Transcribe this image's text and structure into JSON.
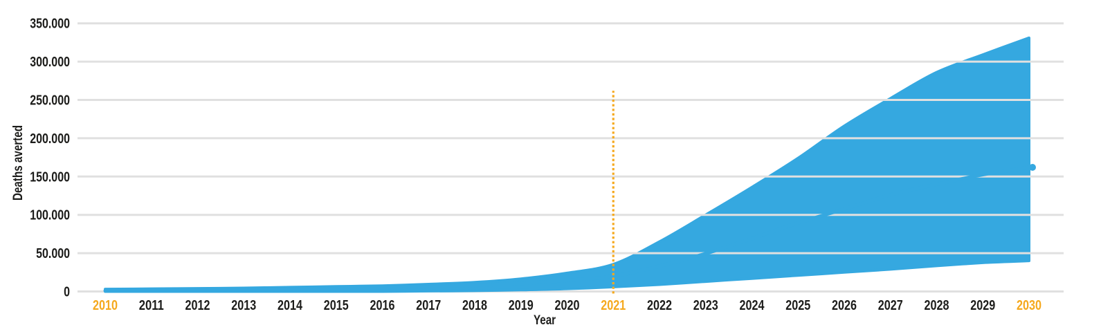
{
  "chart_data": {
    "type": "area",
    "title": "",
    "xlabel": "Year",
    "ylabel": "Deaths averted",
    "x_tick_labels": [
      "2010",
      "2011",
      "2012",
      "2013",
      "2014",
      "2015",
      "2016",
      "2017",
      "2018",
      "2019",
      "2020",
      "2021",
      "2022",
      "2023",
      "2024",
      "2025",
      "2026",
      "2027",
      "2028",
      "2029",
      "2030"
    ],
    "highlighted_x_ticks": [
      "2010",
      "2021",
      "2030"
    ],
    "y_tick_labels": [
      "0",
      "50.000",
      "100.000",
      "150.000",
      "200.000",
      "250.000",
      "300.000",
      "350.000"
    ],
    "y_tick_values": [
      0,
      50000,
      100000,
      150000,
      200000,
      250000,
      300000,
      350000
    ],
    "ylim": [
      0,
      350000
    ],
    "grid": "horizontal",
    "series": [
      {
        "name": "upper bound",
        "values": [
          3000,
          3500,
          4000,
          4500,
          5500,
          6500,
          7500,
          9500,
          12000,
          16500,
          24000,
          35500,
          65000,
          100000,
          136000,
          174000,
          216000,
          252000,
          286000,
          309000,
          331000
        ]
      },
      {
        "name": "median",
        "values": [
          1000,
          1300,
          1700,
          2200,
          2800,
          3600,
          4800,
          6200,
          8000,
          10500,
          14500,
          20000,
          33000,
          49500,
          69000,
          89500,
          107500,
          126000,
          140000,
          152500,
          162000
        ]
      },
      {
        "name": "lower bound",
        "values": [
          0,
          0,
          0,
          0,
          0,
          0,
          0,
          500,
          1000,
          2000,
          3500,
          6000,
          9000,
          13000,
          17000,
          21000,
          25000,
          29000,
          33500,
          37500,
          40000
        ]
      }
    ],
    "annotation_line": {
      "x": "2021",
      "top_value": 262000,
      "style": "dotted"
    },
    "colors": {
      "band": "#35A8E0",
      "highlight": "#F5A91F",
      "text": "#1D1D1B",
      "grid": "#E0E0E0"
    }
  }
}
